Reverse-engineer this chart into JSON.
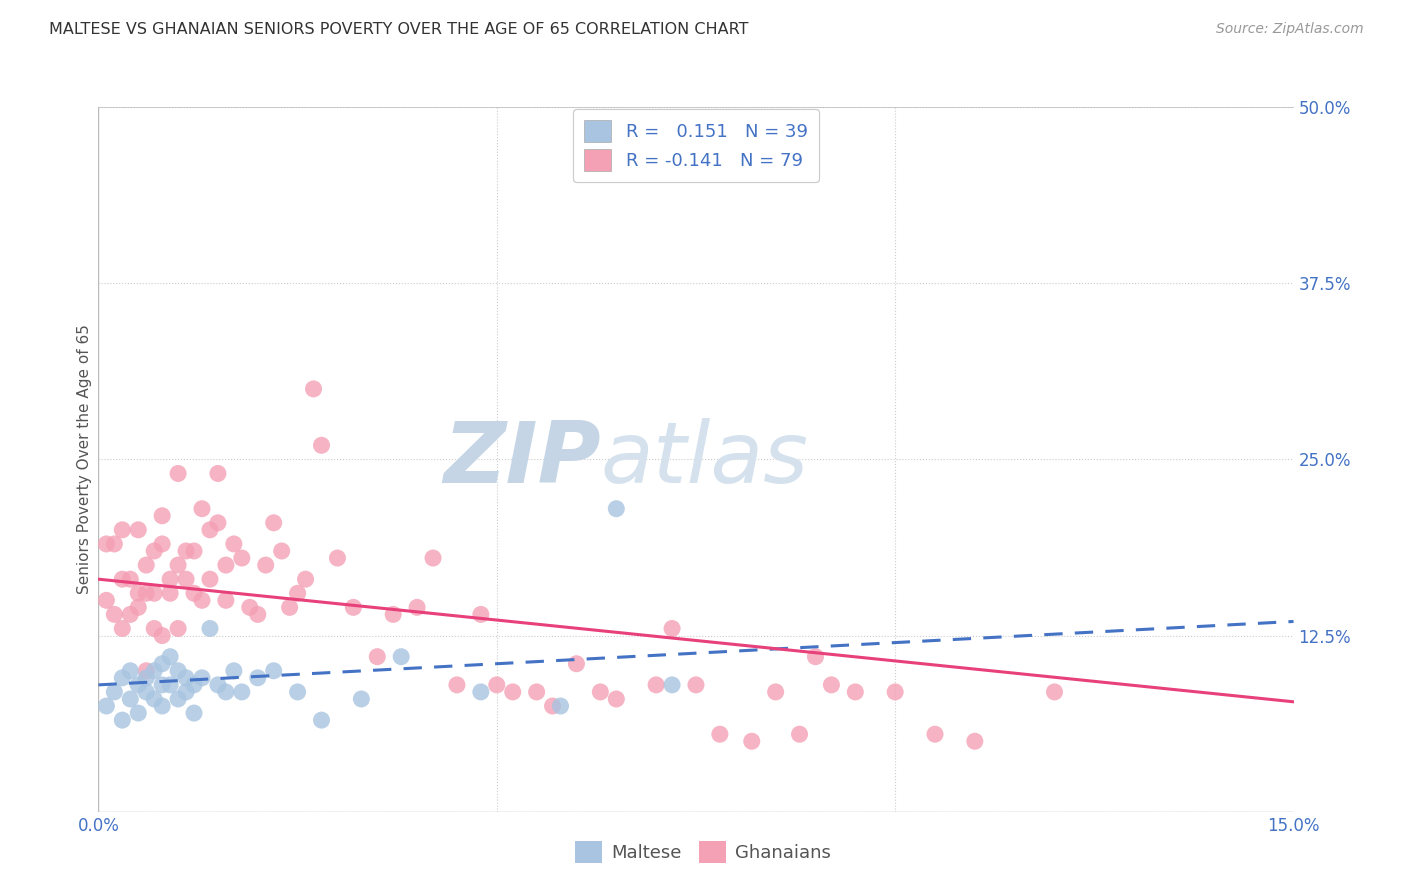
{
  "title": "MALTESE VS GHANAIAN SENIORS POVERTY OVER THE AGE OF 65 CORRELATION CHART",
  "source": "Source: ZipAtlas.com",
  "ylabel": "Seniors Poverty Over the Age of 65",
  "xlim": [
    0.0,
    0.15
  ],
  "ylim": [
    0.0,
    0.5
  ],
  "xticks": [
    0.0,
    0.05,
    0.1,
    0.15
  ],
  "xticklabels": [
    "0.0%",
    "",
    "",
    "15.0%"
  ],
  "yticks": [
    0.0,
    0.125,
    0.25,
    0.375,
    0.5
  ],
  "yticklabels": [
    "",
    "12.5%",
    "25.0%",
    "37.5%",
    "50.0%"
  ],
  "maltese_R": 0.151,
  "maltese_N": 39,
  "ghanaian_R": -0.141,
  "ghanaian_N": 79,
  "maltese_color": "#a8c4e0",
  "ghanaian_color": "#f4a0b5",
  "maltese_line_color": "#4472c4",
  "ghanaian_line_color": "#e8407a",
  "background_color": "#ffffff",
  "grid_color": "#cccccc",
  "watermark_zip": "ZIP",
  "watermark_atlas": "atlas",
  "watermark_color": "#d0dce8",
  "maltese_x": [
    0.001,
    0.002,
    0.003,
    0.003,
    0.004,
    0.004,
    0.005,
    0.005,
    0.006,
    0.006,
    0.007,
    0.007,
    0.008,
    0.008,
    0.008,
    0.009,
    0.009,
    0.01,
    0.01,
    0.011,
    0.011,
    0.012,
    0.012,
    0.013,
    0.014,
    0.015,
    0.016,
    0.017,
    0.018,
    0.02,
    0.022,
    0.025,
    0.028,
    0.033,
    0.038,
    0.048,
    0.058,
    0.065,
    0.072
  ],
  "maltese_y": [
    0.075,
    0.085,
    0.065,
    0.095,
    0.08,
    0.1,
    0.07,
    0.09,
    0.085,
    0.095,
    0.08,
    0.1,
    0.09,
    0.105,
    0.075,
    0.09,
    0.11,
    0.08,
    0.1,
    0.085,
    0.095,
    0.09,
    0.07,
    0.095,
    0.13,
    0.09,
    0.085,
    0.1,
    0.085,
    0.095,
    0.1,
    0.085,
    0.065,
    0.08,
    0.11,
    0.085,
    0.075,
    0.215,
    0.09
  ],
  "ghanaian_x": [
    0.001,
    0.001,
    0.002,
    0.002,
    0.003,
    0.003,
    0.003,
    0.004,
    0.004,
    0.005,
    0.005,
    0.005,
    0.006,
    0.006,
    0.006,
    0.007,
    0.007,
    0.007,
    0.008,
    0.008,
    0.008,
    0.009,
    0.009,
    0.01,
    0.01,
    0.01,
    0.011,
    0.011,
    0.012,
    0.012,
    0.013,
    0.013,
    0.014,
    0.014,
    0.015,
    0.015,
    0.016,
    0.016,
    0.017,
    0.018,
    0.019,
    0.02,
    0.021,
    0.022,
    0.023,
    0.024,
    0.025,
    0.026,
    0.027,
    0.028,
    0.03,
    0.032,
    0.035,
    0.037,
    0.04,
    0.042,
    0.045,
    0.048,
    0.05,
    0.052,
    0.055,
    0.057,
    0.06,
    0.063,
    0.065,
    0.07,
    0.072,
    0.075,
    0.078,
    0.082,
    0.085,
    0.088,
    0.09,
    0.092,
    0.095,
    0.1,
    0.105,
    0.11,
    0.12
  ],
  "ghanaian_y": [
    0.15,
    0.19,
    0.14,
    0.19,
    0.13,
    0.165,
    0.2,
    0.14,
    0.165,
    0.145,
    0.2,
    0.155,
    0.1,
    0.155,
    0.175,
    0.13,
    0.185,
    0.155,
    0.125,
    0.19,
    0.21,
    0.165,
    0.155,
    0.13,
    0.24,
    0.175,
    0.165,
    0.185,
    0.185,
    0.155,
    0.15,
    0.215,
    0.165,
    0.2,
    0.24,
    0.205,
    0.175,
    0.15,
    0.19,
    0.18,
    0.145,
    0.14,
    0.175,
    0.205,
    0.185,
    0.145,
    0.155,
    0.165,
    0.3,
    0.26,
    0.18,
    0.145,
    0.11,
    0.14,
    0.145,
    0.18,
    0.09,
    0.14,
    0.09,
    0.085,
    0.085,
    0.075,
    0.105,
    0.085,
    0.08,
    0.09,
    0.13,
    0.09,
    0.055,
    0.05,
    0.085,
    0.055,
    0.11,
    0.09,
    0.085,
    0.085,
    0.055,
    0.05,
    0.085
  ],
  "maltese_trend_x0": 0.0,
  "maltese_trend_y0": 0.09,
  "maltese_trend_x1": 0.15,
  "maltese_trend_y1": 0.135,
  "ghanaian_trend_x0": 0.0,
  "ghanaian_trend_y0": 0.165,
  "ghanaian_trend_x1": 0.15,
  "ghanaian_trend_y1": 0.078
}
